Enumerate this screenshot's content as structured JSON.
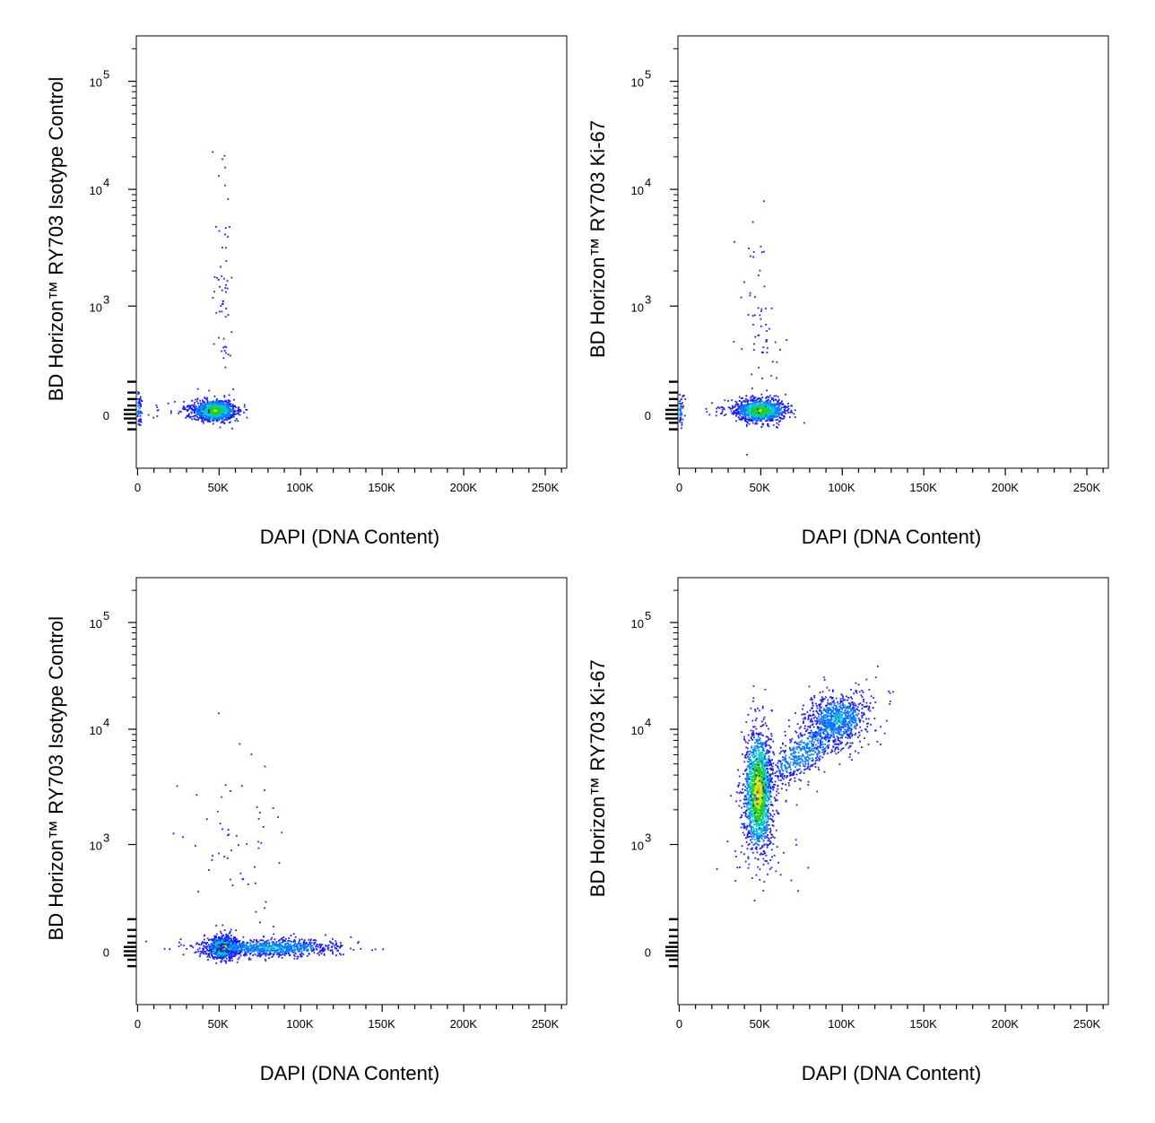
{
  "chart_data": [
    {
      "type": "scatter",
      "panel": "top-left",
      "xlabel": "DAPI (DNA Content)",
      "ylabel": "BD Horizon™ RY703 Isotype Control",
      "x_ticks": [
        "0",
        "50K",
        "100K",
        "150K",
        "200K",
        "250K"
      ],
      "y_ticks": [
        {
          "base": "10",
          "exp": "5"
        },
        {
          "base": "10",
          "exp": "4"
        },
        {
          "base": "10",
          "exp": "3"
        },
        {
          "base": "0",
          "exp": ""
        }
      ],
      "xlim": [
        0,
        262144
      ],
      "ylim": [
        -300,
        250000
      ],
      "coloring": "density (blue-green-yellow-red)",
      "populations": [
        {
          "name": "G1 cluster",
          "x_center": 50000,
          "y_center": 0,
          "count": 1100
        },
        {
          "name": "low-DAPI events",
          "x_center": 0,
          "y_center": 0,
          "count": 70
        },
        {
          "name": "scatter events",
          "x_center": 52000,
          "y_center": 1000,
          "count": 60
        }
      ]
    },
    {
      "type": "scatter",
      "panel": "top-right",
      "xlabel": "DAPI (DNA Content)",
      "ylabel": "BD Horizon™ RY703 Ki-67",
      "x_ticks": [
        "0",
        "50K",
        "100K",
        "150K",
        "200K",
        "250K"
      ],
      "y_ticks": [
        {
          "base": "10",
          "exp": "5"
        },
        {
          "base": "10",
          "exp": "4"
        },
        {
          "base": "10",
          "exp": "3"
        },
        {
          "base": "0",
          "exp": ""
        }
      ],
      "xlim": [
        0,
        262144
      ],
      "ylim": [
        -300,
        250000
      ],
      "coloring": "density (blue-green-yellow-red)",
      "populations": [
        {
          "name": "G1 cluster",
          "x_center": 52000,
          "y_center": 0,
          "count": 1100
        },
        {
          "name": "low-DAPI events",
          "x_center": 0,
          "y_center": 0,
          "count": 60
        },
        {
          "name": "scatter events",
          "x_center": 52000,
          "y_center": 900,
          "count": 70
        }
      ]
    },
    {
      "type": "scatter",
      "panel": "bottom-left",
      "xlabel": "DAPI (DNA Content)",
      "ylabel": "BD Horizon™ RY703 Isotype Control",
      "x_ticks": [
        "0",
        "50K",
        "100K",
        "150K",
        "200K",
        "250K"
      ],
      "y_ticks": [
        {
          "base": "10",
          "exp": "5"
        },
        {
          "base": "10",
          "exp": "4"
        },
        {
          "base": "10",
          "exp": "3"
        },
        {
          "base": "0",
          "exp": ""
        }
      ],
      "xlim": [
        0,
        262144
      ],
      "ylim": [
        -300,
        250000
      ],
      "coloring": "density (blue-green-yellow-red)",
      "populations": [
        {
          "name": "G1 cluster",
          "x_center": 50000,
          "y_center": 0,
          "count": 900
        },
        {
          "name": "S/G2 tail",
          "x_center": 80000,
          "y_center": 0,
          "count": 900
        },
        {
          "name": "scatter events",
          "x_center": 70000,
          "y_center": 800,
          "count": 60
        }
      ]
    },
    {
      "type": "scatter",
      "panel": "bottom-right",
      "xlabel": "DAPI (DNA Content)",
      "ylabel": "BD Horizon™ RY703 Ki-67",
      "x_ticks": [
        "0",
        "50K",
        "100K",
        "150K",
        "200K",
        "250K"
      ],
      "y_ticks": [
        {
          "base": "10",
          "exp": "5"
        },
        {
          "base": "10",
          "exp": "4"
        },
        {
          "base": "10",
          "exp": "3"
        },
        {
          "base": "0",
          "exp": ""
        }
      ],
      "xlim": [
        0,
        262144
      ],
      "ylim": [
        -300,
        250000
      ],
      "coloring": "density (blue-green-yellow-red)",
      "populations": [
        {
          "name": "G1 Ki-67+ cluster",
          "x_center": 50000,
          "y_center": 3500,
          "count": 1600
        },
        {
          "name": "S phase diagonal",
          "x_center": 75000,
          "y_center": 8000,
          "count": 700
        },
        {
          "name": "G2/M cluster",
          "x_center": 97000,
          "y_center": 15000,
          "count": 700
        },
        {
          "name": "low events",
          "x_center": 50000,
          "y_center": 500,
          "count": 40
        }
      ]
    }
  ]
}
